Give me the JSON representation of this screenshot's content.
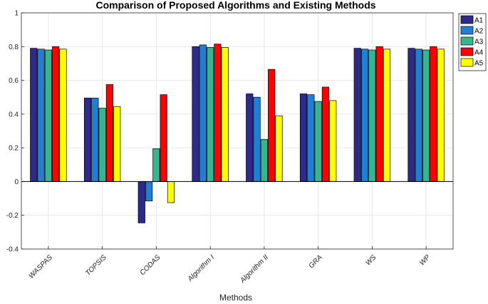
{
  "chart_data": {
    "type": "bar",
    "title": "Comparison of Proposed Algorithms and Existing Methods",
    "xlabel": "Methods",
    "ylabel": "",
    "ylim": [
      -0.4,
      1
    ],
    "yticks": [
      -0.4,
      -0.2,
      0,
      0.2,
      0.4,
      0.6,
      0.8,
      1
    ],
    "ytick_labels": [
      "-0.4",
      "-0.2",
      "0",
      "0.2",
      "0.4",
      "0.6",
      "0.8",
      "1"
    ],
    "grid": true,
    "legend_position": "top-right",
    "categories": [
      "WASPAS",
      "TOPSIS",
      "CODAS",
      "Algorithm I",
      "Algorithm II",
      "GRA",
      "WS",
      "WP"
    ],
    "series": [
      {
        "name": "A1",
        "color": "#2e2a8a",
        "values": [
          0.79,
          0.495,
          -0.245,
          0.8,
          0.52,
          0.52,
          0.79,
          0.79
        ]
      },
      {
        "name": "A2",
        "color": "#1f7fd4",
        "values": [
          0.785,
          0.495,
          -0.115,
          0.81,
          0.5,
          0.515,
          0.785,
          0.785
        ]
      },
      {
        "name": "A3",
        "color": "#36b58f",
        "values": [
          0.78,
          0.435,
          0.195,
          0.795,
          0.25,
          0.475,
          0.78,
          0.78
        ]
      },
      {
        "name": "A4",
        "color": "#ff0000",
        "values": [
          0.8,
          0.575,
          0.515,
          0.815,
          0.665,
          0.56,
          0.8,
          0.8
        ]
      },
      {
        "name": "A5",
        "color": "#ffff00",
        "values": [
          0.785,
          0.445,
          -0.125,
          0.795,
          0.39,
          0.48,
          0.785,
          0.785
        ]
      }
    ]
  }
}
